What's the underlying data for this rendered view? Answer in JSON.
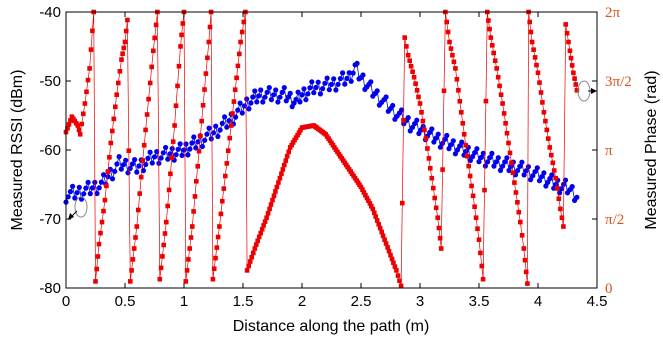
{
  "chart_data": {
    "type": "scatter",
    "xlabel": "Distance along the path (m)",
    "ylabel_left": "Measured RSSI (dBm)",
    "ylabel_right": "Measured Phase (rad)",
    "xlim": [
      0,
      4.5
    ],
    "ylim_left": [
      -80,
      -40
    ],
    "ylim_right": [
      0,
      6.2832
    ],
    "x_ticks": [
      "0",
      "0.5",
      "1",
      "1.5",
      "2",
      "2.5",
      "3",
      "3.5",
      "4",
      "4.5"
    ],
    "y_left_ticks": [
      "-80",
      "-70",
      "-60",
      "-50",
      "-40"
    ],
    "y_right_ticks": [
      "0",
      "π/2",
      "π",
      "3π/2",
      "2π"
    ],
    "grid": false,
    "colors": {
      "rssi": "#0000ee",
      "phase": "#ee0000",
      "right_axis": "#d9541a"
    },
    "rssi_anchors": [
      [
        0.0,
        -66.5
      ],
      [
        0.15,
        -66
      ],
      [
        0.3,
        -65
      ],
      [
        0.45,
        -62
      ],
      [
        0.6,
        -62.5
      ],
      [
        0.75,
        -61
      ],
      [
        0.9,
        -60.5
      ],
      [
        1.0,
        -60
      ],
      [
        1.1,
        -59
      ],
      [
        1.25,
        -57.5
      ],
      [
        1.4,
        -55.5
      ],
      [
        1.55,
        -53
      ],
      [
        1.65,
        -52
      ],
      [
        1.85,
        -52
      ],
      [
        1.95,
        -53
      ],
      [
        2.0,
        -52
      ],
      [
        2.1,
        -51
      ],
      [
        2.25,
        -50.5
      ],
      [
        2.4,
        -49.5
      ],
      [
        2.45,
        -48
      ],
      [
        2.5,
        -49.5
      ],
      [
        2.6,
        -51.5
      ],
      [
        2.75,
        -54
      ],
      [
        2.9,
        -56
      ],
      [
        3.1,
        -58
      ],
      [
        3.3,
        -59.5
      ],
      [
        3.5,
        -61
      ],
      [
        3.7,
        -62
      ],
      [
        3.9,
        -63
      ],
      [
        4.05,
        -64
      ],
      [
        4.15,
        -65
      ],
      [
        4.25,
        -65.5
      ],
      [
        4.33,
        -66.5
      ]
    ],
    "phase_anchors": [
      [
        0.0,
        3.55
      ],
      [
        0.05,
        3.9
      ],
      [
        0.1,
        3.7
      ],
      [
        0.12,
        3.5
      ],
      [
        0.16,
        4.2
      ],
      [
        0.2,
        5.0
      ],
      [
        0.235,
        6.2832
      ],
      [
        0.25,
        0.15
      ],
      [
        0.28,
        1.0
      ],
      [
        0.33,
        2.0
      ],
      [
        0.38,
        3.3
      ],
      [
        0.43,
        4.4
      ],
      [
        0.47,
        5.2
      ],
      [
        0.5,
        5.6
      ],
      [
        0.52,
        6.1
      ],
      [
        0.545,
        0.15
      ],
      [
        0.6,
        1.4
      ],
      [
        0.65,
        2.9
      ],
      [
        0.7,
        4.3
      ],
      [
        0.74,
        5.4
      ],
      [
        0.775,
        6.2832
      ],
      [
        0.795,
        0.2
      ],
      [
        0.85,
        1.5
      ],
      [
        0.92,
        3.7
      ],
      [
        0.97,
        5.5
      ],
      [
        1.0,
        6.2832
      ],
      [
        1.015,
        0.15
      ],
      [
        1.07,
        1.4
      ],
      [
        1.15,
        3.8
      ],
      [
        1.21,
        5.6
      ],
      [
        1.23,
        6.2832
      ],
      [
        1.245,
        0.2
      ],
      [
        1.3,
        1.4
      ],
      [
        1.4,
        3.7
      ],
      [
        1.48,
        5.6
      ],
      [
        1.52,
        6.2832
      ],
      [
        1.535,
        0.4
      ],
      [
        1.6,
        0.9
      ],
      [
        1.7,
        1.6
      ],
      [
        1.8,
        2.4
      ],
      [
        1.9,
        3.2
      ],
      [
        2.0,
        3.65
      ],
      [
        2.1,
        3.7
      ],
      [
        2.2,
        3.5
      ],
      [
        2.3,
        3.1
      ],
      [
        2.4,
        2.7
      ],
      [
        2.5,
        2.3
      ],
      [
        2.6,
        1.8
      ],
      [
        2.7,
        1.1
      ],
      [
        2.8,
        0.4
      ],
      [
        2.84,
        0.05
      ],
      [
        2.87,
        5.7
      ],
      [
        2.9,
        5.3
      ],
      [
        2.95,
        4.8
      ],
      [
        3.0,
        4.2
      ],
      [
        3.05,
        3.4
      ],
      [
        3.1,
        2.5
      ],
      [
        3.15,
        1.6
      ],
      [
        3.18,
        0.9
      ],
      [
        3.215,
        6.2832
      ],
      [
        3.25,
        5.6
      ],
      [
        3.3,
        5.0
      ],
      [
        3.35,
        4.0
      ],
      [
        3.4,
        3.0
      ],
      [
        3.45,
        2.1
      ],
      [
        3.5,
        1.1
      ],
      [
        3.535,
        0.2
      ],
      [
        3.57,
        6.2832
      ],
      [
        3.6,
        5.7
      ],
      [
        3.65,
        5.0
      ],
      [
        3.7,
        4.2
      ],
      [
        3.75,
        3.3
      ],
      [
        3.8,
        2.4
      ],
      [
        3.85,
        1.5
      ],
      [
        3.88,
        0.9
      ],
      [
        3.91,
        0.1
      ],
      [
        3.92,
        6.2832
      ],
      [
        3.95,
        5.6
      ],
      [
        4.0,
        4.9
      ],
      [
        4.05,
        4.0
      ],
      [
        4.1,
        3.2
      ],
      [
        4.15,
        2.5
      ],
      [
        4.19,
        1.8
      ],
      [
        4.215,
        1.4
      ],
      [
        4.235,
        6.0
      ],
      [
        4.27,
        5.4
      ],
      [
        4.3,
        4.9
      ],
      [
        4.33,
        4.5
      ]
    ]
  }
}
